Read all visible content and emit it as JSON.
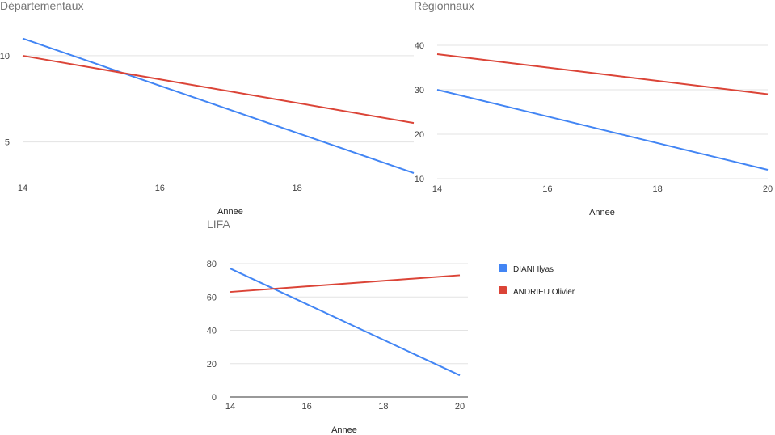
{
  "chart_data": [
    {
      "type": "line",
      "title": "Départementaux",
      "xlabel": "Annee",
      "ylabel": "",
      "x_ticks": [
        14,
        16,
        18
      ],
      "y_ticks": [
        5,
        10
      ],
      "xlim": [
        14,
        19.7
      ],
      "ylim": [
        3.2,
        12.2
      ],
      "grid": true,
      "series": [
        {
          "name": "DIANI Ilyas",
          "color": "#4285f4",
          "x": [
            14,
            19.7
          ],
          "y": [
            11.0,
            3.2
          ]
        },
        {
          "name": "ANDRIEU Olivier",
          "color": "#db4437",
          "x": [
            14,
            19.7
          ],
          "y": [
            10.0,
            6.1
          ]
        }
      ]
    },
    {
      "type": "line",
      "title": "Régionnaux",
      "xlabel": "Annee",
      "ylabel": "",
      "x_ticks": [
        14,
        16,
        18,
        20
      ],
      "y_ticks": [
        10,
        20,
        30,
        40
      ],
      "xlim": [
        14,
        20
      ],
      "ylim": [
        10,
        40
      ],
      "grid": true,
      "series": [
        {
          "name": "DIANI Ilyas",
          "color": "#4285f4",
          "x": [
            14,
            20
          ],
          "y": [
            30,
            12
          ]
        },
        {
          "name": "ANDRIEU Olivier",
          "color": "#db4437",
          "x": [
            14,
            20
          ],
          "y": [
            38,
            29
          ]
        }
      ]
    },
    {
      "type": "line",
      "title": "LIFA",
      "xlabel": "Annee",
      "ylabel": "",
      "x_ticks": [
        14,
        16,
        18,
        20
      ],
      "y_ticks": [
        0,
        20,
        40,
        60,
        80
      ],
      "xlim": [
        14,
        20
      ],
      "ylim": [
        0,
        80
      ],
      "grid": true,
      "legend": "right",
      "series": [
        {
          "name": "DIANI Ilyas",
          "color": "#4285f4",
          "x": [
            14,
            20
          ],
          "y": [
            77,
            13
          ]
        },
        {
          "name": "ANDRIEU Olivier",
          "color": "#db4437",
          "x": [
            14,
            20
          ],
          "y": [
            63,
            73
          ]
        }
      ]
    }
  ],
  "legend": [
    {
      "label": "DIANI Ilyas",
      "color": "#4285f4"
    },
    {
      "label": "ANDRIEU Olivier",
      "color": "#db4437"
    }
  ]
}
